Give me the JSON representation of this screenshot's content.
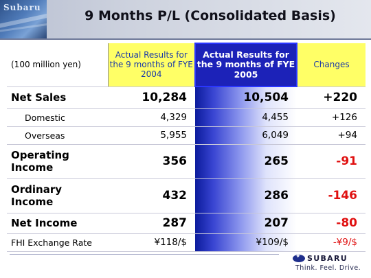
{
  "header": {
    "logo_text": "Subaru",
    "title": "9 Months P/L  (Consolidated Basis)"
  },
  "table": {
    "unit_label": "(100 million yen)",
    "columns": [
      "Actual Results for the 9 months of FYE 2004",
      "Actual Results for the 9 months of FYE 2005",
      "Changes"
    ],
    "rows": [
      {
        "label": "Net Sales",
        "prev": "10,284",
        "curr": "10,504",
        "change": "+220"
      },
      {
        "label": "Domestic",
        "prev": "4,329",
        "curr": "4,455",
        "change": "+126"
      },
      {
        "label": "Overseas",
        "prev": "5,955",
        "curr": "6,049",
        "change": "+94"
      },
      {
        "label_line1": "Operating",
        "label_line2": "Income",
        "prev": "356",
        "curr": "265",
        "change": "-91"
      },
      {
        "label_line1": "Ordinary",
        "label_line2": "Income",
        "prev": "432",
        "curr": "286",
        "change": "-146"
      },
      {
        "label": "Net Income",
        "prev": "287",
        "curr": "207",
        "change": "-80"
      },
      {
        "label": "FHI Exchange Rate",
        "prev": "¥118/$",
        "curr": "¥109/$",
        "change": "-¥9/$"
      }
    ]
  },
  "footer": {
    "brand": "SUBARU",
    "tagline": "Think. Feel. Drive."
  },
  "colors": {
    "highlight_yellow": "#ffff66",
    "highlight_blue": "#1c22b8",
    "negative_red": "#e01010"
  }
}
